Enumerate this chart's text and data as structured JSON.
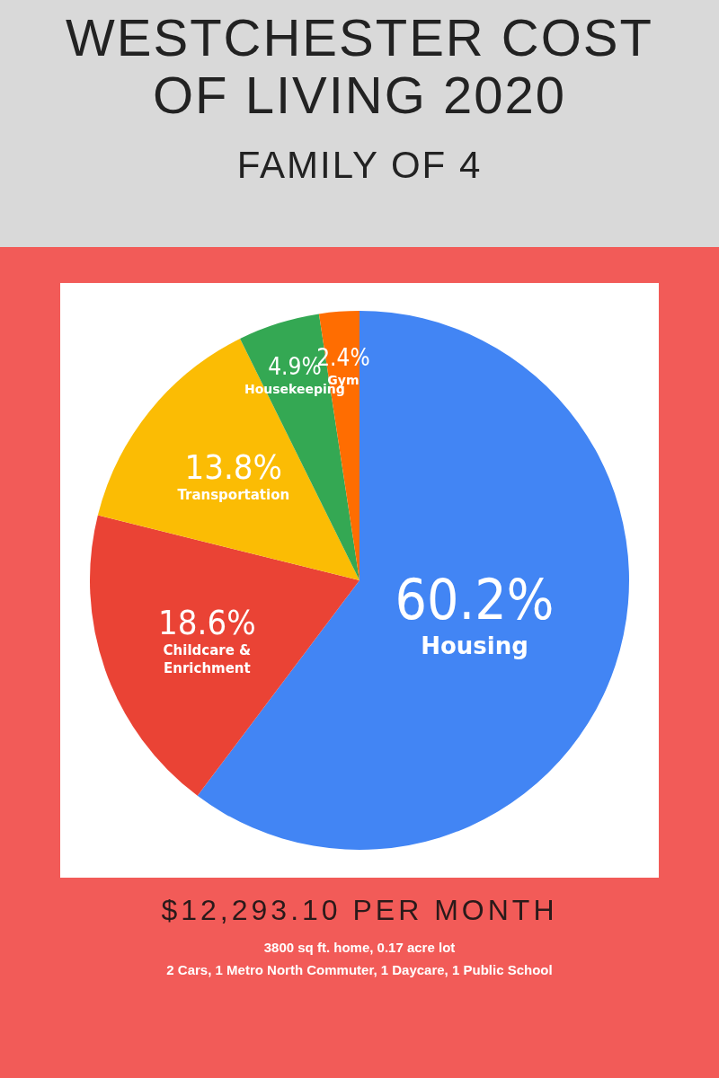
{
  "chart_data": {
    "type": "pie",
    "title": "WESTCHESTER COST OF LIVING 2020",
    "subtitle": "FAMILY OF 4",
    "categories": [
      "Housing",
      "Childcare & Enrichment",
      "Transportation",
      "Housekeeping",
      "Gym"
    ],
    "values": [
      60.2,
      18.6,
      13.8,
      4.9,
      2.4
    ],
    "value_labels": [
      "60.2%",
      "18.6%",
      "13.8%",
      "4.9%",
      "2.4%"
    ],
    "colors": [
      "#4285f4",
      "#ea4335",
      "#fbbc04",
      "#34a853",
      "#ff6d01"
    ],
    "legend": false,
    "annotations": [
      "$12,293.10 PER MONTH",
      "3800 sq ft. home, 0.17 acre lot",
      "2 Cars, 1 Metro North Commuter, 1 Daycare, 1 Public School"
    ]
  }
}
